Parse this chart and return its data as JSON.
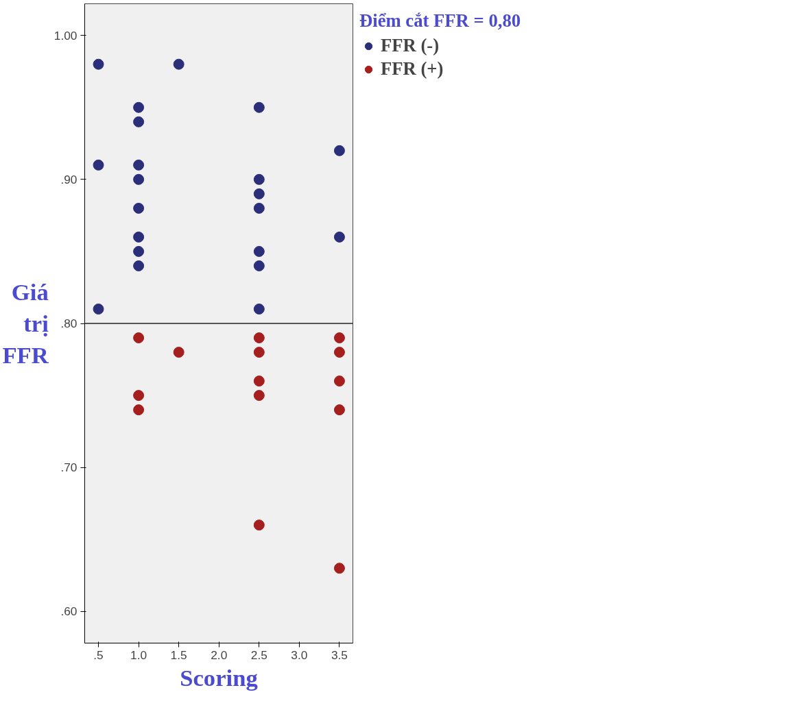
{
  "chart_data": {
    "type": "scatter",
    "xlabel": "Scoring",
    "ylabel": "Giá trị FFR",
    "legend_title": "Điểm cắt FFR = 0,80",
    "xlim": [
      0.329,
      3.667
    ],
    "xticks": [
      {
        "value": 0.5,
        "label": ".5"
      },
      {
        "value": 1.0,
        "label": "1.0"
      },
      {
        "value": 1.5,
        "label": "1.5"
      },
      {
        "value": 2.0,
        "label": "2.0"
      },
      {
        "value": 2.5,
        "label": "2.5"
      },
      {
        "value": 3.0,
        "label": "3.0"
      },
      {
        "value": 3.5,
        "label": "3.5"
      }
    ],
    "ylim": [
      0.578,
      1.022
    ],
    "yticks": [
      {
        "value": 0.6,
        "label": ".60"
      },
      {
        "value": 0.7,
        "label": ".70"
      },
      {
        "value": 0.8,
        "label": ".80"
      },
      {
        "value": 0.9,
        "label": ".90"
      },
      {
        "value": 1.0,
        "label": "1.00"
      }
    ],
    "grid": false,
    "legend": "top right",
    "marker": "circle",
    "ref_lines": [
      {
        "axis": "y",
        "value": 0.8,
        "color": "#555555"
      }
    ],
    "series": [
      {
        "name": "FFR (-)",
        "color": "#2b2f7a",
        "x": [
          0.5,
          0.5,
          0.5,
          1,
          1,
          1,
          1,
          1,
          1,
          1,
          1,
          1.5,
          2.5,
          2.5,
          2.5,
          2.5,
          2.5,
          2.5,
          2.5,
          3.5,
          3.5
        ],
        "values": [
          0.98,
          0.91,
          0.81,
          0.95,
          0.94,
          0.91,
          0.9,
          0.88,
          0.86,
          0.85,
          0.84,
          0.98,
          0.95,
          0.9,
          0.89,
          0.88,
          0.85,
          0.84,
          0.81,
          0.92,
          0.86
        ]
      },
      {
        "name": "FFR (+)",
        "color": "#a51f1f",
        "x": [
          1,
          1,
          1,
          1.5,
          2.5,
          2.5,
          2.5,
          2.5,
          2.5,
          3.5,
          3.5,
          3.5,
          3.5,
          3.5
        ],
        "values": [
          0.79,
          0.75,
          0.74,
          0.78,
          0.79,
          0.78,
          0.76,
          0.75,
          0.66,
          0.79,
          0.78,
          0.76,
          0.74,
          0.63
        ]
      }
    ]
  }
}
